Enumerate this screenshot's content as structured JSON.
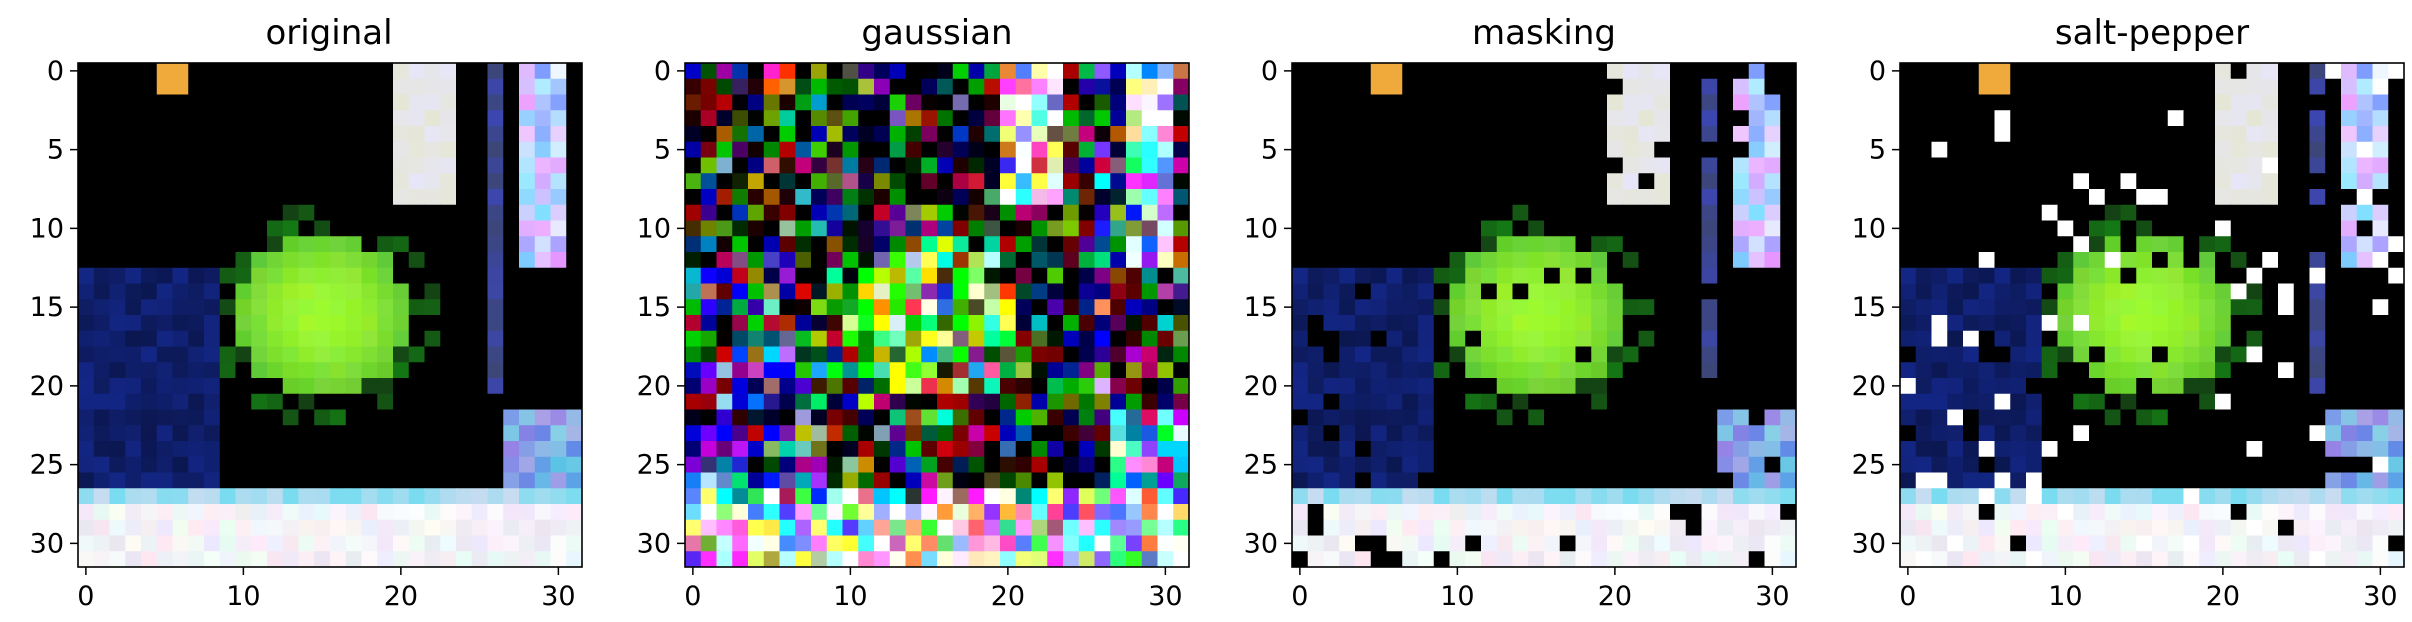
{
  "figure": {
    "panels": [
      {
        "title": "original",
        "image": "original-noisy-free",
        "noise": "none"
      },
      {
        "title": "gaussian",
        "image": "gaussian-noised",
        "noise": "gaussian"
      },
      {
        "title": "masking",
        "image": "masked",
        "noise": "masking"
      },
      {
        "title": "salt-pepper",
        "image": "salt-and-pepper-noised",
        "noise": "salt-pepper"
      }
    ],
    "axes": {
      "x_ticks": [
        "0",
        "10",
        "20",
        "30"
      ],
      "y_ticks": [
        "0",
        "5",
        "10",
        "15",
        "20",
        "25",
        "30"
      ],
      "range": [
        0,
        31
      ]
    },
    "colors": {
      "background": "#000000",
      "apple": "#7ee84a",
      "water": "#1a2c8c",
      "salt": "#ffffff",
      "pepper": "#000000"
    }
  }
}
